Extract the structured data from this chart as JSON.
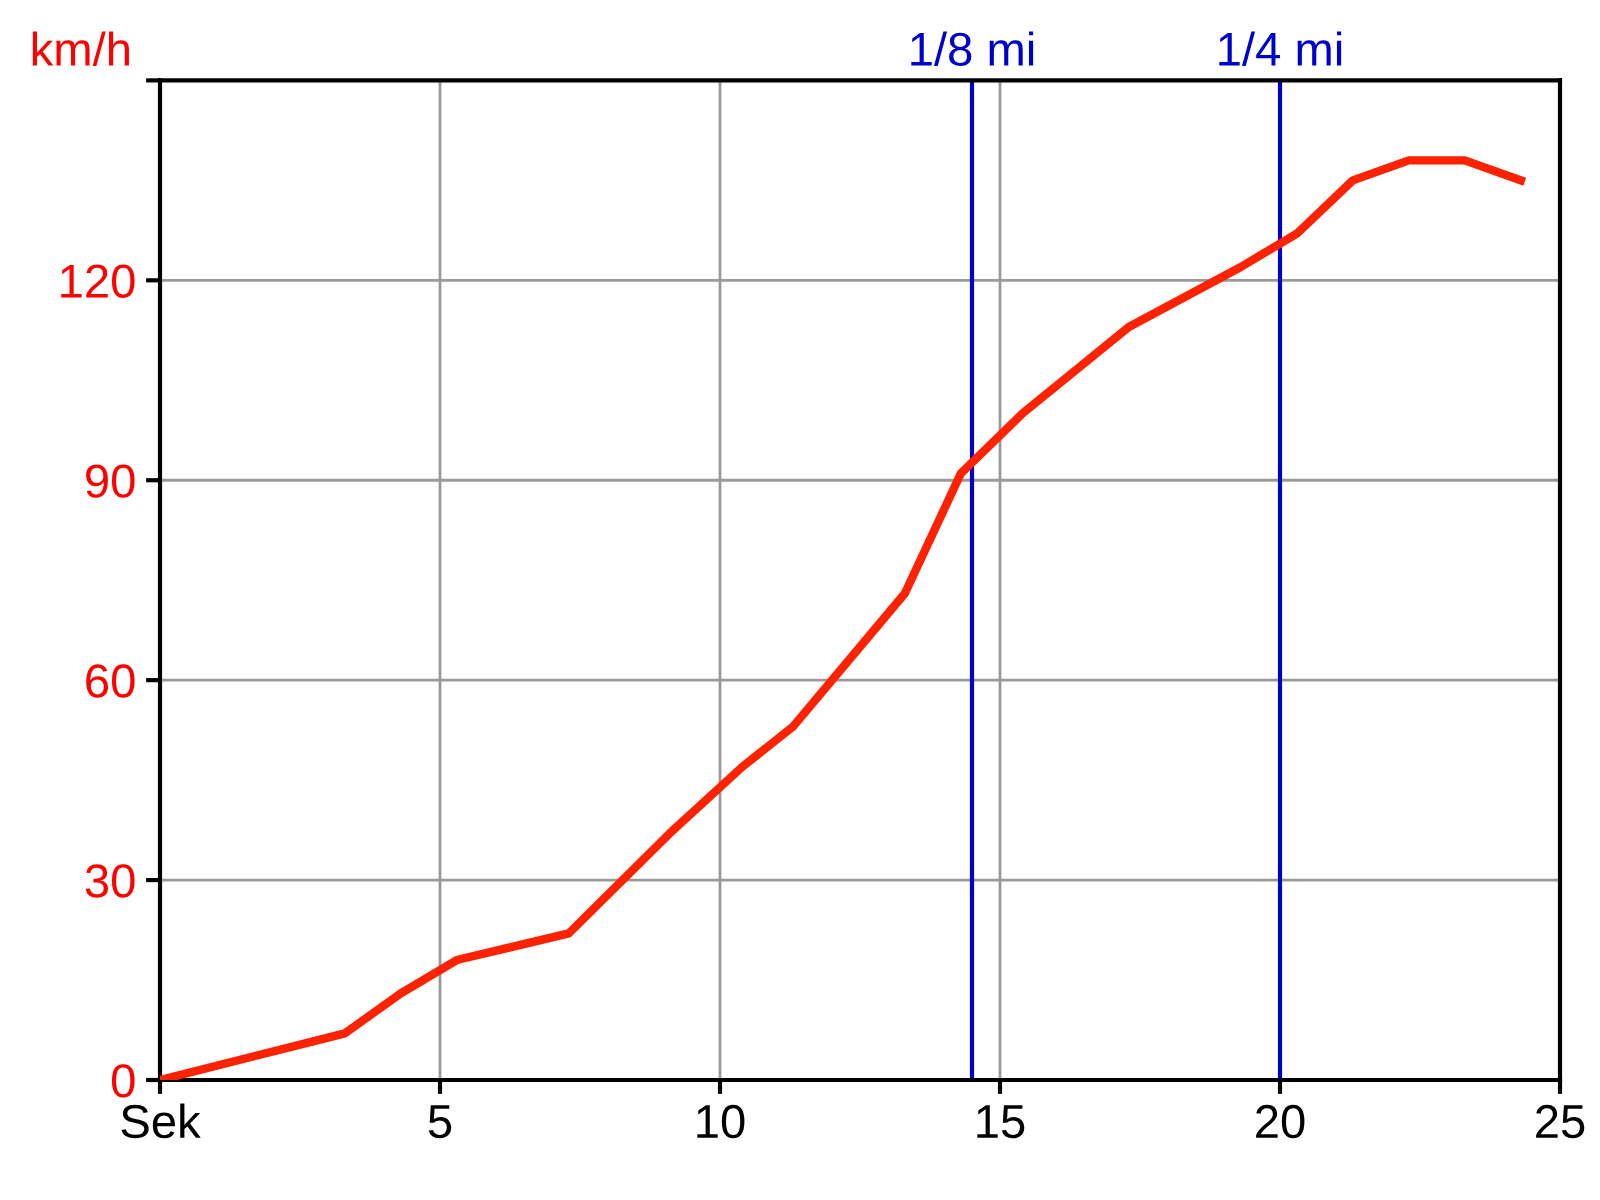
{
  "chart_data": {
    "type": "line",
    "ylabel": "km/h",
    "x": [
      0,
      3.3,
      4.3,
      5.3,
      7.3,
      9.1,
      10.4,
      11.3,
      12.1,
      13.3,
      14.3,
      15.4,
      17.3,
      19.3,
      20.3,
      21.3,
      22.3,
      23.3,
      24.3
    ],
    "series": [
      {
        "color": "#ff2200",
        "values": [
          0,
          7,
          13,
          18,
          22,
          37,
          47,
          53,
          61,
          73,
          91,
          100,
          113,
          122,
          127,
          135,
          138,
          138,
          135
        ]
      }
    ],
    "xlim": [
      0,
      25
    ],
    "xticks": [
      {
        "value": 0,
        "label": "Sek"
      },
      5,
      10,
      15,
      20,
      25
    ],
    "ylim": [
      0,
      150
    ],
    "yticks": [
      0,
      30,
      60,
      90,
      120,
      {
        "value": 150,
        "label": null
      }
    ],
    "grid": true,
    "marker": "none",
    "line_style": "solid",
    "ref_lines": [
      {
        "axis": "x",
        "value": 14.5,
        "label": "1/8 mi",
        "color": "#0000cc"
      },
      {
        "axis": "x",
        "value": 20,
        "label": "1/4 mi",
        "color": "#0000cc"
      }
    ]
  }
}
